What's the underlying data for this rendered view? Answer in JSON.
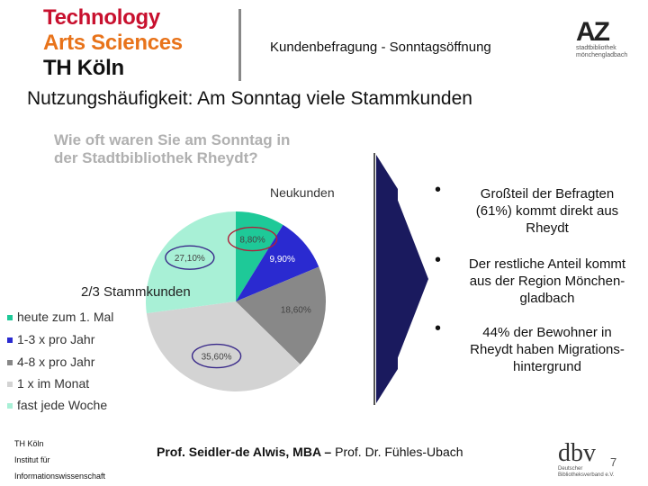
{
  "header": {
    "logo_lines": [
      "Technology",
      "Arts Sciences",
      "TH Köln"
    ],
    "subtitle": "Kundenbefragung - Sonntagsöffnung",
    "az_logo": {
      "mark": "AZ",
      "line1": "stadtbibliothek",
      "line2": "mönchengladbach"
    }
  },
  "title": "Nutzungshäufigkeit: Am Sonntag viele Stammkunden",
  "chart_data": {
    "type": "pie",
    "title": "Wie oft waren Sie am Sonntag in der Stadtbibliothek Rheydt?",
    "title_lines": [
      "Wie oft waren Sie am Sonntag in",
      "der Stadtbibliothek Rheydt?"
    ],
    "labels": [
      "heute zum 1. Mal",
      "1-3 x pro Jahr",
      "4-8 x pro Jahr",
      "1 x im Monat",
      "fast jede Woche"
    ],
    "values": [
      8.8,
      9.9,
      18.6,
      35.6,
      27.1
    ],
    "value_labels": [
      "8,80%",
      "9,90%",
      "18,60%",
      "35,60%",
      "27,10%"
    ],
    "colors": [
      "#1ec998",
      "#2a2ad0",
      "#888888",
      "#d3d3d3",
      "#a8f0d6"
    ],
    "annotations": {
      "neukunden": "Neukunden",
      "stammkunden": "2/3 Stammkunden"
    }
  },
  "bullets": [
    {
      "lines": [
        "Großteil der Befragten",
        "(61%) kommt direkt aus",
        "Rheydt"
      ]
    },
    {
      "lines": [
        "Der restliche Anteil kommt",
        "aus der Region Mönchen-",
        "gladbach"
      ]
    },
    {
      "lines": [
        "44% der Bewohner in",
        "Rheydt haben Migrations-",
        "hintergrund"
      ]
    }
  ],
  "footer": {
    "left_lines": [
      "TH Köln",
      "Institut für",
      "Informationswissenschaft"
    ],
    "authors_bold": "Prof. Seidler-de Alwis, MBA –",
    "authors_rest": " Prof. Dr. Fühles-Ubach",
    "dbv_logo": {
      "mark": "dbv",
      "line1": "Deutscher",
      "line2": "Bibliotheksverband e.V."
    },
    "page_number": "7"
  }
}
